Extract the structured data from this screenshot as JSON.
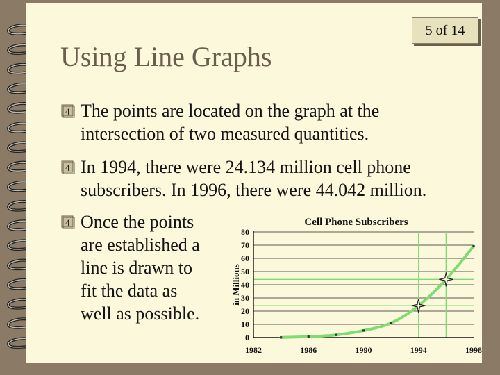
{
  "page_counter": "5  of 14",
  "title": "Using Line Graphs",
  "bullets": [
    {
      "lines": [
        "The points are located on the graph at the",
        "intersection of two measured quantities."
      ]
    },
    {
      "lines": [
        "In 1994, there were 24.134 million cell phone",
        "subscribers.  In 1996, there were 44.042 million."
      ]
    },
    {
      "lines": [
        "Once the points",
        "are established a",
        "line is drawn to",
        "fit the data as",
        "well as possible."
      ]
    }
  ],
  "icons": {
    "bullet": "checkbox-four-icon",
    "binding": "spiral-binding-icon"
  },
  "colors": {
    "background": "#fbf8dc",
    "frame": "#8a7a66",
    "title": "#6b5d4d",
    "curve": "#7fdc6f",
    "guide": "#7fdc6f"
  },
  "chart_data": {
    "type": "line",
    "title": "Cell Phone Subscribers",
    "xlabel": "",
    "ylabel": "in Millions",
    "xlim": [
      1982,
      1998
    ],
    "ylim": [
      0,
      80
    ],
    "x_ticks": [
      1982,
      1986,
      1990,
      1994,
      1998
    ],
    "y_ticks": [
      0,
      10,
      20,
      30,
      40,
      50,
      60,
      70,
      80
    ],
    "grid": true,
    "series": [
      {
        "points": [
          {
            "x": 1984,
            "y": 0.1
          },
          {
            "x": 1986,
            "y": 0.7
          },
          {
            "x": 1988,
            "y": 2
          },
          {
            "x": 1990,
            "y": 5.3
          },
          {
            "x": 1992,
            "y": 11
          },
          {
            "x": 1994,
            "y": 24.134
          },
          {
            "x": 1996,
            "y": 44.042
          },
          {
            "x": 1998,
            "y": 69.2
          }
        ]
      }
    ],
    "highlighted_points": [
      {
        "x": 1994,
        "y": 24.134
      },
      {
        "x": 1996,
        "y": 44.042
      }
    ]
  }
}
